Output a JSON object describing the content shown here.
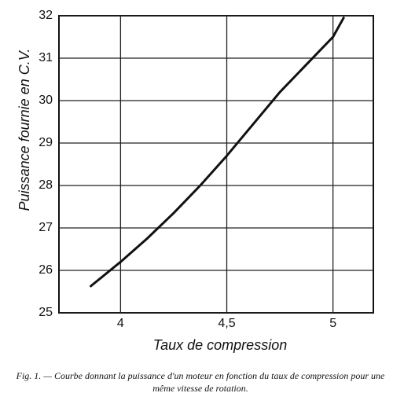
{
  "chart_data": {
    "type": "line",
    "xlabel": "Taux de compression",
    "ylabel": "Puissance fournie en C.V.",
    "caption": "Fig. 1. — Courbe donnant la puissance d'un moteur en fonction du taux de compression pour une même vitesse de rotation.",
    "x": [
      3.86,
      4.0,
      4.125,
      4.25,
      4.375,
      4.5,
      4.625,
      4.75,
      4.875,
      5.0,
      5.05
    ],
    "series": [
      {
        "color": "#111111",
        "values": [
          25.63,
          26.2,
          26.75,
          27.35,
          28.0,
          28.7,
          29.45,
          30.2,
          30.85,
          31.5,
          31.95
        ]
      }
    ],
    "xlim": [
      3.71,
      5.19
    ],
    "ylim": [
      25,
      32
    ],
    "xticks": [
      4,
      {
        "value": 4.5,
        "label": "4,5"
      },
      5
    ],
    "yticks": [
      25,
      26,
      27,
      28,
      29,
      30,
      31,
      32
    ],
    "grid": true
  }
}
